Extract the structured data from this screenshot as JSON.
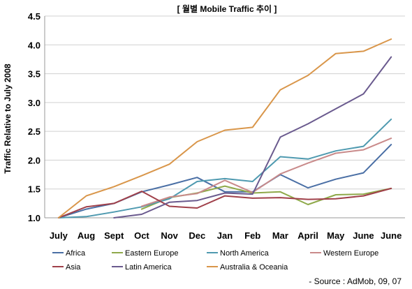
{
  "chart_data": {
    "type": "line",
    "title": "[ 월별 Mobile Traffic 추이 ]",
    "ylabel": "Traffic Relative to July 2008",
    "xlabel": "",
    "categories": [
      "July",
      "Aug",
      "Sept",
      "Oct",
      "Nov",
      "Dec",
      "Jan",
      "Feb",
      "Mar",
      "April",
      "May",
      "June",
      "June"
    ],
    "ylim": [
      1.0,
      4.5
    ],
    "yticks": [
      "1.0",
      "1.5",
      "2.0",
      "2.5",
      "3.0",
      "3.5",
      "4.0",
      "4.5"
    ],
    "grid": true,
    "legend_position": "bottom",
    "series": [
      {
        "name": "Africa",
        "color": "#4a6fa5",
        "values": [
          1.0,
          1.15,
          1.25,
          1.45,
          1.57,
          1.7,
          1.45,
          1.45,
          1.75,
          1.52,
          1.67,
          1.78,
          2.27
        ]
      },
      {
        "name": "Eastern Europe",
        "color": "#8fa94a",
        "values": [
          null,
          null,
          null,
          1.15,
          1.35,
          1.43,
          1.55,
          1.43,
          1.45,
          1.23,
          1.4,
          1.41,
          1.51
        ]
      },
      {
        "name": "North America",
        "color": "#4f9ab0",
        "values": [
          1.0,
          1.02,
          1.1,
          1.19,
          1.33,
          1.63,
          1.68,
          1.63,
          2.06,
          2.02,
          2.16,
          2.24,
          2.71
        ]
      },
      {
        "name": "Western Europe",
        "color": "#c98a8a",
        "values": [
          null,
          null,
          null,
          1.2,
          1.36,
          1.42,
          1.65,
          1.44,
          1.76,
          1.95,
          2.12,
          2.18,
          2.38
        ]
      },
      {
        "name": "Asia",
        "color": "#a0404a",
        "values": [
          1.0,
          1.19,
          1.25,
          1.46,
          1.2,
          1.17,
          1.38,
          1.34,
          1.35,
          1.32,
          1.33,
          1.38,
          1.51
        ]
      },
      {
        "name": "Latin America",
        "color": "#6a5a8e",
        "values": [
          null,
          null,
          1.0,
          1.06,
          1.27,
          1.3,
          1.43,
          1.41,
          2.4,
          2.63,
          2.89,
          3.15,
          3.79
        ]
      },
      {
        "name": "Australia & Oceania",
        "color": "#d9964a",
        "values": [
          1.0,
          1.38,
          1.54,
          1.73,
          1.93,
          2.32,
          2.52,
          2.57,
          3.22,
          3.47,
          3.85,
          3.89,
          4.1
        ]
      }
    ]
  },
  "source_note": "- Source : AdMob, 09, 07"
}
